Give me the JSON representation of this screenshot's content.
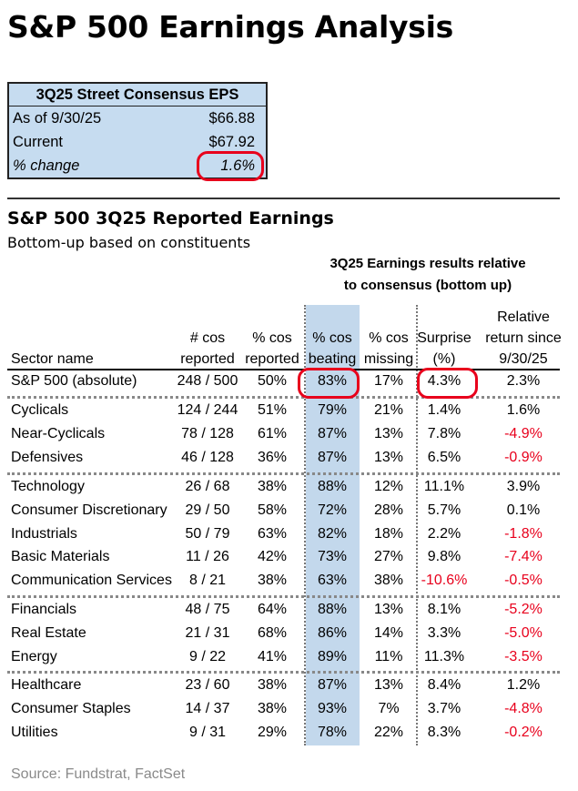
{
  "title": "S&P 500 Earnings Analysis",
  "consensus_box": {
    "header": "3Q25 Street Consensus EPS",
    "rows": [
      {
        "label": "As of 9/30/25",
        "value": "$66.88"
      },
      {
        "label": "Current",
        "value": "$67.92"
      },
      {
        "label": "% change",
        "value": "1.6%"
      }
    ]
  },
  "section": {
    "title": "S&P 500 3Q25 Reported Earnings",
    "subtitle": "Bottom-up based on constituents"
  },
  "group_header": [
    "3Q25 Earnings results relative",
    "to consensus (bottom up)"
  ],
  "columns": [
    [
      "",
      "",
      "Sector name"
    ],
    [
      "",
      "# cos",
      "reported"
    ],
    [
      "",
      "% cos",
      "reported"
    ],
    [
      "",
      "% cos",
      "beating"
    ],
    [
      "",
      "% cos",
      "missing"
    ],
    [
      "",
      "Surprise",
      "(%)"
    ],
    [
      "Relative",
      "return since",
      "9/30/25"
    ]
  ],
  "groups": [
    [
      [
        "S&P 500 (absolute)",
        "248 / 500",
        "50%",
        "83%",
        "17%",
        "4.3%",
        "2.3%"
      ]
    ],
    [
      [
        "Cyclicals",
        "124 / 244",
        "51%",
        "79%",
        "21%",
        "1.4%",
        "1.6%"
      ],
      [
        "Near-Cyclicals",
        "78 / 128",
        "61%",
        "87%",
        "13%",
        "7.8%",
        "-4.9%"
      ],
      [
        "Defensives",
        "46 / 128",
        "36%",
        "87%",
        "13%",
        "6.5%",
        "-0.9%"
      ]
    ],
    [
      [
        "Technology",
        "26 / 68",
        "38%",
        "88%",
        "12%",
        "11.1%",
        "3.9%"
      ],
      [
        "Consumer Discretionary",
        "29 / 50",
        "58%",
        "72%",
        "28%",
        "5.7%",
        "0.1%"
      ],
      [
        "Industrials",
        "50 / 79",
        "63%",
        "82%",
        "18%",
        "2.2%",
        "-1.8%"
      ],
      [
        "Basic Materials",
        "11 / 26",
        "42%",
        "73%",
        "27%",
        "9.8%",
        "-7.4%"
      ],
      [
        "Communication Services",
        "8 / 21",
        "38%",
        "63%",
        "38%",
        "-10.6%",
        "-0.5%"
      ]
    ],
    [
      [
        "Financials",
        "48 / 75",
        "64%",
        "88%",
        "13%",
        "8.1%",
        "-5.2%"
      ],
      [
        "Real Estate",
        "21 / 31",
        "68%",
        "86%",
        "14%",
        "3.3%",
        "-5.0%"
      ],
      [
        "Energy",
        "9 / 22",
        "41%",
        "89%",
        "11%",
        "11.3%",
        "-3.5%"
      ]
    ],
    [
      [
        "Healthcare",
        "23 / 60",
        "38%",
        "87%",
        "13%",
        "8.4%",
        "1.2%"
      ],
      [
        "Consumer Staples",
        "14 / 37",
        "38%",
        "93%",
        "7%",
        "3.7%",
        "-4.8%"
      ],
      [
        "Utilities",
        "9 / 31",
        "29%",
        "78%",
        "22%",
        "8.3%",
        "-0.2%"
      ]
    ]
  ],
  "source": "Source: Fundstrat, FactSet",
  "colors": {
    "highlight": "#c3d8ec",
    "negative": "#e8001c",
    "circle": "#e8001c"
  }
}
